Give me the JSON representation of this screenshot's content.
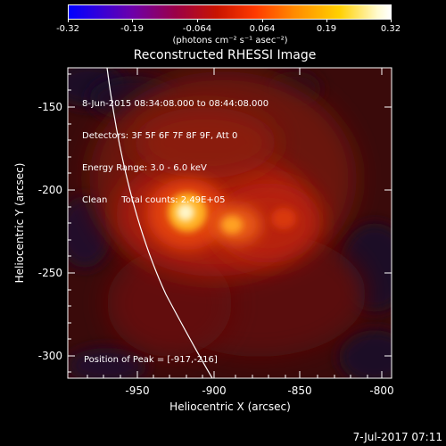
{
  "colorbar": {
    "ticks": [
      "-0.32",
      "-0.19",
      "-0.064",
      "0.064",
      "0.19",
      "0.32"
    ],
    "units": "(photons cm⁻² s⁻¹ asec⁻²)"
  },
  "title": "Reconstructed RHESSI Image",
  "info": {
    "line1": "8-Jun-2015 08:34:08.000 to 08:44:08.000",
    "line2": "Detectors: 3F 5F 6F 7F 8F 9F, Att 0",
    "line3": "Energy Range: 3.0 - 6.0 keV",
    "line4": "Clean     Total counts: 2.49E+05"
  },
  "peak": "Position of Peak = [-917,-216]",
  "axes": {
    "xlabel": "Heliocentric X (arcsec)",
    "ylabel": "Heliocentric Y (arcsec)",
    "xticks": [
      "-950",
      "-900",
      "-850",
      "-800"
    ],
    "yticks": [
      "-150",
      "-200",
      "-250",
      "-300"
    ]
  },
  "footer_date": "7-Jul-2017 07:11"
}
